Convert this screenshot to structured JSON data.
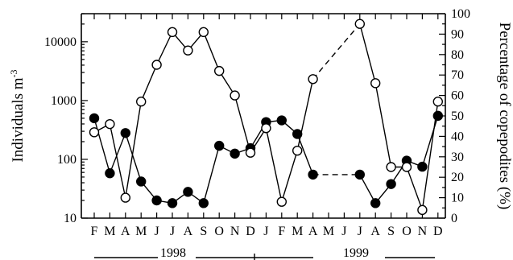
{
  "chart_data": {
    "type": "line",
    "x": [
      "F",
      "M",
      "A",
      "M",
      "J",
      "J",
      "A",
      "S",
      "O",
      "N",
      "D",
      "J",
      "F",
      "M",
      "A",
      "M",
      "J",
      "J",
      "A",
      "S",
      "O",
      "N",
      "D"
    ],
    "year_labels": [
      "1998",
      "1999"
    ],
    "ylabel": "Individuals m",
    "ylabel_exponent": "-3",
    "y2label": "Percentage of copepodites (%)",
    "yscale": "log",
    "ylim": [
      10,
      30000
    ],
    "y2lim": [
      0,
      100
    ],
    "y_ticks": [
      "10",
      "100",
      "1000",
      "10000"
    ],
    "y2_ticks": [
      "0",
      "10",
      "20",
      "30",
      "40",
      "50",
      "60",
      "70",
      "80",
      "90",
      "100"
    ],
    "series": [
      {
        "marker": "filled-circle",
        "axis": "left",
        "values": [
          500,
          58,
          280,
          42,
          20,
          18,
          28,
          18,
          170,
          125,
          155,
          430,
          460,
          270,
          55,
          null,
          null,
          55,
          18,
          38,
          95,
          75,
          550
        ]
      },
      {
        "marker": "open-circle",
        "axis": "right",
        "values": [
          42,
          46,
          10,
          57,
          75,
          91,
          82,
          91,
          72,
          60,
          32,
          44,
          8,
          33,
          68,
          null,
          null,
          95,
          66,
          25,
          25,
          4,
          57
        ]
      }
    ]
  }
}
